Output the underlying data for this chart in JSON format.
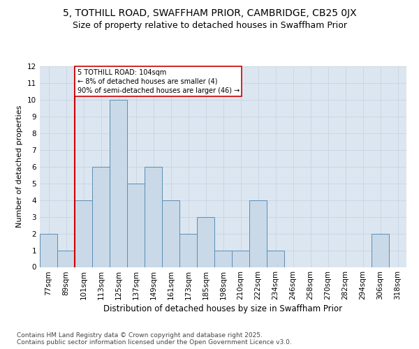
{
  "title1": "5, TOTHILL ROAD, SWAFFHAM PRIOR, CAMBRIDGE, CB25 0JX",
  "title2": "Size of property relative to detached houses in Swaffham Prior",
  "xlabel": "Distribution of detached houses by size in Swaffham Prior",
  "ylabel": "Number of detached properties",
  "categories": [
    "77sqm",
    "89sqm",
    "101sqm",
    "113sqm",
    "125sqm",
    "137sqm",
    "149sqm",
    "161sqm",
    "173sqm",
    "185sqm",
    "198sqm",
    "210sqm",
    "222sqm",
    "234sqm",
    "246sqm",
    "258sqm",
    "270sqm",
    "282sqm",
    "294sqm",
    "306sqm",
    "318sqm"
  ],
  "values": [
    2,
    1,
    4,
    6,
    10,
    5,
    6,
    4,
    2,
    3,
    1,
    1,
    4,
    1,
    0,
    0,
    0,
    0,
    0,
    2,
    0
  ],
  "bar_color": "#c9d9e8",
  "bar_edge_color": "#5a8db5",
  "subject_line_color": "#cc0000",
  "annotation_text": "5 TOTHILL ROAD: 104sqm\n← 8% of detached houses are smaller (4)\n90% of semi-detached houses are larger (46) →",
  "annotation_box_color": "#ffffff",
  "annotation_box_edge": "#cc0000",
  "ylim": [
    0,
    12
  ],
  "yticks": [
    0,
    1,
    2,
    3,
    4,
    5,
    6,
    7,
    8,
    9,
    10,
    11,
    12
  ],
  "grid_color": "#c8d4e3",
  "bg_color": "#dce6f0",
  "fig_bg_color": "#ffffff",
  "footer": "Contains HM Land Registry data © Crown copyright and database right 2025.\nContains public sector information licensed under the Open Government Licence v3.0.",
  "title_fontsize": 10,
  "subtitle_fontsize": 9,
  "xlabel_fontsize": 8.5,
  "ylabel_fontsize": 8,
  "tick_fontsize": 7.5,
  "footer_fontsize": 6.5
}
